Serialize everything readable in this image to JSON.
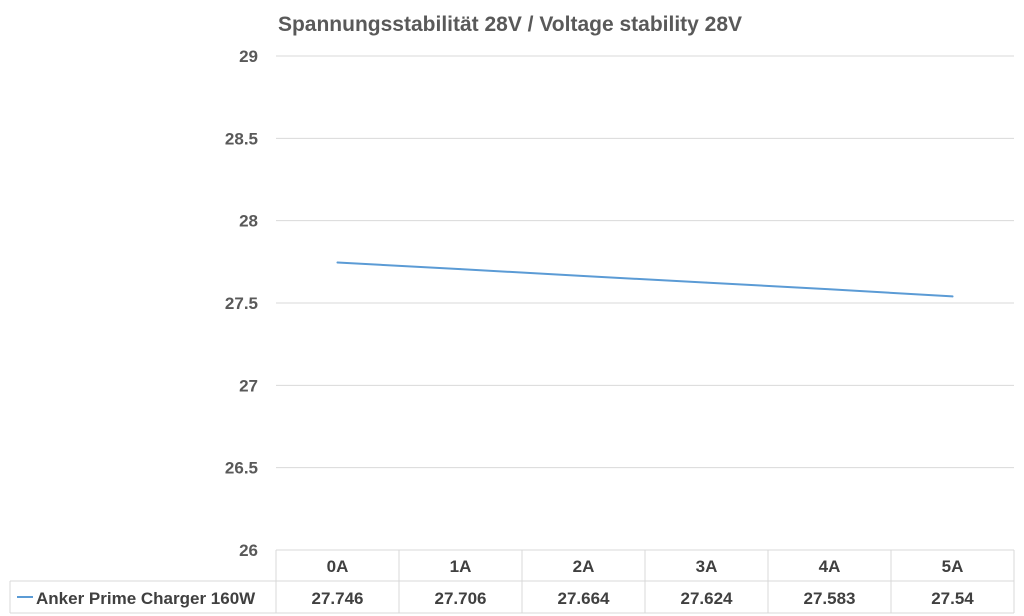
{
  "chart_data": {
    "type": "line",
    "title": "Spannungsstabilität 28V / Voltage stability 28V",
    "xlabel": "",
    "ylabel": "",
    "categories": [
      "0A",
      "1A",
      "2A",
      "3A",
      "4A",
      "5A"
    ],
    "ylim": [
      26,
      29
    ],
    "yticks": [
      "29",
      "28.5",
      "28",
      "27.5",
      "27",
      "26.5",
      "26"
    ],
    "grid": true,
    "legend": "bottom-left (data table)",
    "series": [
      {
        "name": "Anker Prime Charger 160W",
        "values": [
          27.746,
          27.706,
          27.664,
          27.624,
          27.583,
          27.54
        ],
        "labels": [
          "27.746",
          "27.706",
          "27.664",
          "27.624",
          "27.583",
          "27.54"
        ],
        "color": "#5b9bd5"
      }
    ]
  }
}
